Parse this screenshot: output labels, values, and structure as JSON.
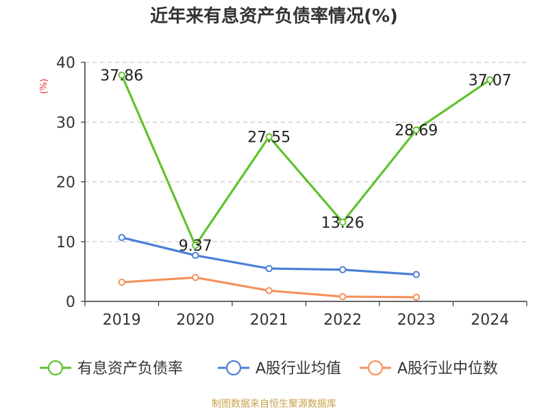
{
  "chart_data": {
    "type": "line",
    "title": "近年来有息资产负债率情况(%)",
    "ylabel": "(%)",
    "xlabel": "",
    "categories": [
      "2019",
      "2020",
      "2021",
      "2022",
      "2023",
      "2024"
    ],
    "ylim": [
      0,
      40
    ],
    "yticks": [
      0,
      10,
      20,
      30,
      40
    ],
    "grid": true,
    "legend_position": "bottom",
    "series": [
      {
        "name": "有息资产负债率",
        "color": "#5ec22b",
        "values": [
          37.86,
          9.37,
          27.55,
          13.26,
          28.69,
          37.07
        ],
        "labels": [
          "37.86",
          "9.37",
          "27.55",
          "13.26",
          "28.69",
          "37.07"
        ]
      },
      {
        "name": "A股行业均值",
        "color": "#4a7fd8",
        "values": [
          10.7,
          7.7,
          5.5,
          5.3,
          4.5,
          null
        ]
      },
      {
        "name": "A股行业中位数",
        "color": "#f5915d",
        "values": [
          3.2,
          4.0,
          1.8,
          0.8,
          0.7,
          null
        ]
      }
    ]
  },
  "footer": {
    "source": "制图数据来自恒生聚源数据库",
    "color": "#c8a14b"
  },
  "ylabel_color": "#e03030"
}
